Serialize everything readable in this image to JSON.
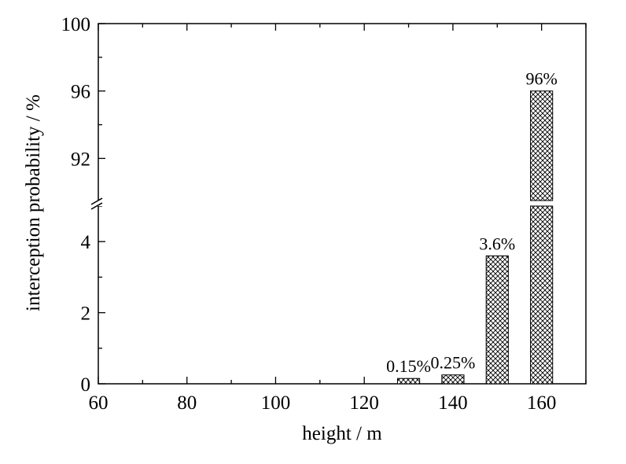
{
  "chart_data": {
    "type": "bar",
    "xlabel": "height / m",
    "ylabel": "interception probability / %",
    "xlim": [
      60,
      170
    ],
    "x_ticks": [
      60,
      80,
      100,
      120,
      140,
      160
    ],
    "y_axis_broken": true,
    "y_lower_range": [
      0,
      5
    ],
    "y_upper_range": [
      89.5,
      100
    ],
    "y_ticks_lower": [
      0,
      2,
      4
    ],
    "y_ticks_upper": [
      92,
      96,
      100
    ],
    "bar_fill_pattern": "crosshatch",
    "bars": [
      {
        "x": 130,
        "value": 0.15,
        "label": "0.15%"
      },
      {
        "x": 140,
        "value": 0.25,
        "label": "0.25%"
      },
      {
        "x": 150,
        "value": 3.6,
        "label": "3.6%"
      },
      {
        "x": 160,
        "value": 96,
        "label": "96%"
      }
    ]
  }
}
